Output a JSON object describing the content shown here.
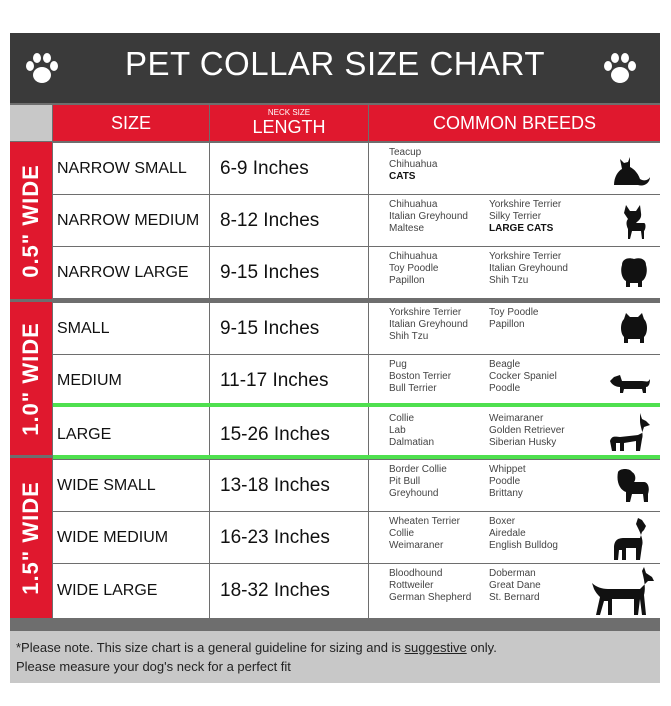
{
  "title": "PET COLLAR SIZE CHART",
  "headers": {
    "size": "SIZE",
    "length_small": "NECK SIZE",
    "length": "LENGTH",
    "breeds": "COMMON BREEDS"
  },
  "groups": [
    {
      "label": "0.5\" WIDE"
    },
    {
      "label": "1.0\" WIDE"
    },
    {
      "label": "1.5\" WIDE"
    }
  ],
  "rows": [
    {
      "size": "NARROW SMALL",
      "length": "6-9   Inches",
      "col1": [
        "Teacup",
        "Chihuahua",
        "CATS"
      ],
      "col2": [],
      "animal": "cat-icon"
    },
    {
      "size": "NARROW MEDIUM",
      "length": "8-12 Inches",
      "col1": [
        "Chihuahua",
        "Italian Greyhound",
        "Maltese"
      ],
      "col2": [
        "Yorkshire Terrier",
        "Silky Terrier",
        "LARGE CATS"
      ],
      "animal": "chihuahua-icon"
    },
    {
      "size": "NARROW LARGE",
      "length": "9-15 Inches",
      "col1": [
        "Chihuahua",
        "Toy Poodle",
        "Papillon"
      ],
      "col2": [
        "Yorkshire Terrier",
        "Italian Greyhound",
        "Shih Tzu"
      ],
      "animal": "small-dog-icon"
    },
    {
      "size": "SMALL",
      "length": "9-15   Inches",
      "col1": [
        "Yorkshire Terrier",
        "Italian Greyhound",
        "Shih Tzu"
      ],
      "col2": [
        "Toy Poodle",
        "Papillon"
      ],
      "animal": "pomeranian-icon"
    },
    {
      "size": "MEDIUM",
      "length": "11-17 Inches",
      "col1": [
        "Pug",
        "Boston Terrier",
        "Bull Terrier"
      ],
      "col2": [
        "Beagle",
        "Cocker Spaniel",
        "Poodle"
      ],
      "animal": "dachshund-icon"
    },
    {
      "size": "LARGE",
      "length": "15-26 Inches",
      "col1": [
        "Collie",
        "Lab",
        "Dalmatian"
      ],
      "col2": [
        "Weimaraner",
        "Golden Retriever",
        "Siberian Husky"
      ],
      "animal": "german-shepherd-icon"
    },
    {
      "size": "WIDE SMALL",
      "length": "13-18 Inches",
      "col1": [
        "Border Collie",
        "Pit Bull",
        "Greyhound"
      ],
      "col2": [
        "Whippet",
        "Poodle",
        "Brittany"
      ],
      "animal": "bulldog-icon"
    },
    {
      "size": "WIDE MEDIUM",
      "length": "16-23 Inches",
      "col1": [
        "Wheaten Terrier",
        "Collie",
        "Weimaraner"
      ],
      "col2": [
        "Boxer",
        "Airedale",
        "English Bulldog"
      ],
      "animal": "pitbull-icon"
    },
    {
      "size": "WIDE LARGE",
      "length": "18-32 Inches",
      "col1": [
        "Bloodhound",
        "Rottweiler",
        "German Shepherd"
      ],
      "col2": [
        "Doberman",
        "Great Dane",
        "St. Bernard"
      ],
      "animal": "doberman-icon"
    }
  ],
  "footer": {
    "line1_pre": "*Please note. This size chart is a general guideline for sizing and is ",
    "line1_underline": "suggestive",
    "line1_post": " only.",
    "line2": "Please measure your dog's neck for a perfect fit"
  },
  "colors": {
    "accent_red": "#e0182e",
    "title_bg": "#3a3a3a",
    "grid_gray": "#6e6e6e",
    "highlight_green": "#4fe04f"
  }
}
